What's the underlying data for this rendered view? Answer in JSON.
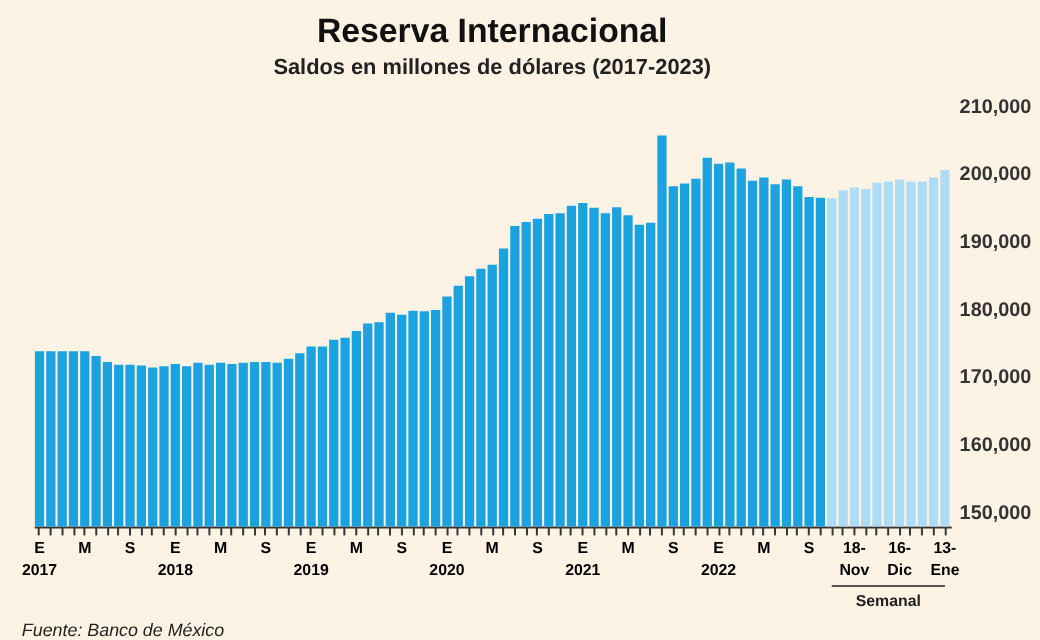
{
  "chart_data": {
    "type": "bar",
    "title": "Reserva Internacional",
    "subtitle": "Saldos en millones de dólares (2017-2023)",
    "categories": [
      "E\n2017",
      null,
      null,
      null,
      "M",
      null,
      null,
      null,
      "S",
      null,
      null,
      null,
      "E\n2018",
      null,
      null,
      null,
      "M",
      null,
      null,
      null,
      "S",
      null,
      null,
      null,
      "E\n2019",
      null,
      null,
      null,
      "M",
      null,
      null,
      null,
      "S",
      null,
      null,
      null,
      "E\n2020",
      null,
      null,
      null,
      "M",
      null,
      null,
      null,
      "S",
      null,
      null,
      null,
      "E\n2021",
      null,
      null,
      null,
      "M",
      null,
      null,
      null,
      "S",
      null,
      null,
      null,
      "E\n2022",
      null,
      null,
      null,
      "M",
      null,
      null,
      null,
      "S",
      null,
      null,
      null,
      "18-\nNov",
      null,
      null,
      null,
      "16-\nDic",
      null,
      null,
      null,
      "13-\nEne"
    ],
    "series": [
      {
        "color": "#1aa3e0",
        "values": [
          173700,
          173700,
          173700,
          173700,
          173700,
          173000,
          172100,
          171700,
          171700,
          171600,
          171300,
          171500,
          171800,
          171500,
          172000,
          171700,
          172000,
          171800,
          172000,
          172100,
          172100,
          172000,
          172600,
          173400,
          174400,
          174400,
          175400,
          175700,
          176700,
          177800,
          178000,
          179400,
          179100,
          179700,
          179600,
          179800,
          181800,
          183400,
          184800,
          185900,
          186500,
          188900,
          192200,
          192800,
          193300,
          194000,
          194100,
          195200,
          195600,
          194900,
          194100,
          195000,
          193800,
          192400,
          192700,
          205600,
          198100,
          198500,
          199200,
          202300,
          201400,
          201600,
          200700,
          198900,
          199400,
          198400,
          199100,
          198100,
          196500,
          196400,
          null,
          null,
          null,
          null,
          null,
          null,
          null,
          null,
          null,
          null,
          null
        ]
      },
      {
        "color": "#aedcf5",
        "values": [
          null,
          null,
          null,
          null,
          null,
          null,
          null,
          null,
          null,
          null,
          null,
          null,
          null,
          null,
          null,
          null,
          null,
          null,
          null,
          null,
          null,
          null,
          null,
          null,
          null,
          null,
          null,
          null,
          null,
          null,
          null,
          null,
          null,
          null,
          null,
          null,
          null,
          null,
          null,
          null,
          null,
          null,
          null,
          null,
          null,
          null,
          null,
          null,
          null,
          null,
          null,
          null,
          null,
          null,
          null,
          null,
          null,
          null,
          null,
          null,
          null,
          null,
          null,
          null,
          null,
          null,
          null,
          null,
          null,
          null,
          196300,
          197500,
          197900,
          197700,
          198600,
          198800,
          199100,
          198800,
          198800,
          199400,
          200500
        ]
      }
    ],
    "ylim": [
      147800,
      210000
    ],
    "yticks": [
      {
        "value": 150000,
        "label": "150,000"
      },
      {
        "value": 160000,
        "label": "160,000"
      },
      {
        "value": 170000,
        "label": "170,000"
      },
      {
        "value": 180000,
        "label": "180,000"
      },
      {
        "value": 190000,
        "label": "190,000"
      },
      {
        "value": 200000,
        "label": "200,000"
      },
      {
        "value": 210000,
        "label": "210,000"
      }
    ],
    "grid": false,
    "legend": false,
    "annotations": [
      "Semanal",
      "Fuente: Banco de México"
    ]
  }
}
